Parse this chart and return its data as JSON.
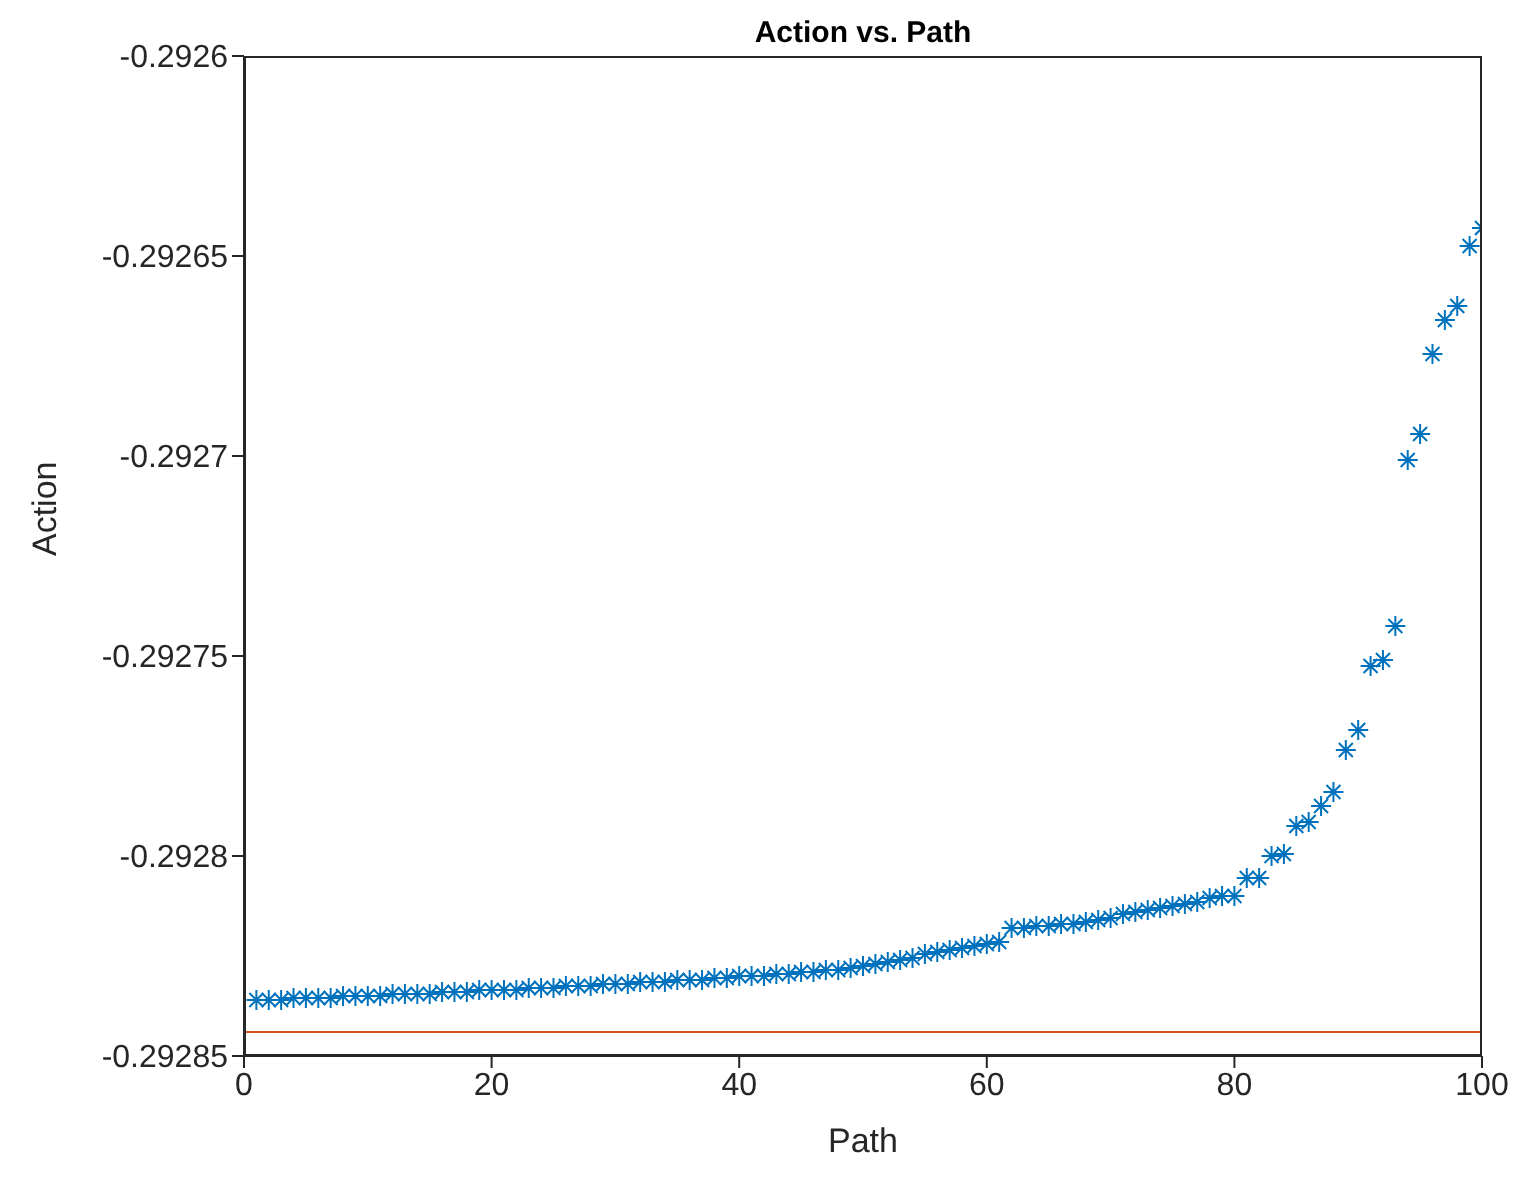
{
  "chart_data": {
    "type": "scatter",
    "title": "Action vs. Path",
    "xlabel": "Path",
    "ylabel": "Action",
    "x": [
      1,
      2,
      3,
      4,
      5,
      6,
      7,
      8,
      9,
      10,
      11,
      12,
      13,
      14,
      15,
      16,
      17,
      18,
      19,
      20,
      21,
      22,
      23,
      24,
      25,
      26,
      27,
      28,
      29,
      30,
      31,
      32,
      33,
      34,
      35,
      36,
      37,
      38,
      39,
      40,
      41,
      42,
      43,
      44,
      45,
      46,
      47,
      48,
      49,
      50,
      51,
      52,
      53,
      54,
      55,
      56,
      57,
      58,
      59,
      60,
      61,
      62,
      63,
      64,
      65,
      66,
      67,
      68,
      69,
      70,
      71,
      72,
      73,
      74,
      75,
      76,
      77,
      78,
      79,
      80,
      81,
      82,
      83,
      84,
      85,
      86,
      87,
      88,
      89,
      90,
      91,
      92,
      93,
      94,
      95,
      96,
      97,
      98,
      99,
      100
    ],
    "series": [
      {
        "color": "#0072bd",
        "values": [
          -0.292836,
          -0.292836,
          -0.292836,
          -0.2928355,
          -0.2928355,
          -0.2928355,
          -0.2928355,
          -0.292835,
          -0.292835,
          -0.292835,
          -0.292835,
          -0.2928345,
          -0.2928345,
          -0.2928345,
          -0.2928345,
          -0.292834,
          -0.292834,
          -0.292834,
          -0.2928335,
          -0.2928335,
          -0.2928335,
          -0.2928335,
          -0.292833,
          -0.292833,
          -0.292833,
          -0.2928325,
          -0.2928325,
          -0.2928325,
          -0.292832,
          -0.292832,
          -0.292832,
          -0.2928315,
          -0.2928315,
          -0.2928315,
          -0.292831,
          -0.292831,
          -0.292831,
          -0.2928305,
          -0.2928305,
          -0.29283,
          -0.29283,
          -0.29283,
          -0.2928295,
          -0.2928295,
          -0.292829,
          -0.292829,
          -0.2928285,
          -0.2928285,
          -0.292828,
          -0.2928275,
          -0.292827,
          -0.2928265,
          -0.292826,
          -0.2928255,
          -0.2928245,
          -0.292824,
          -0.2928235,
          -0.292823,
          -0.2928225,
          -0.292822,
          -0.2928215,
          -0.292818,
          -0.292818,
          -0.2928175,
          -0.2928175,
          -0.292817,
          -0.292817,
          -0.2928165,
          -0.292816,
          -0.2928155,
          -0.2928145,
          -0.292814,
          -0.2928135,
          -0.292813,
          -0.2928125,
          -0.292812,
          -0.2928115,
          -0.2928105,
          -0.29281,
          -0.29281,
          -0.2928055,
          -0.2928055,
          -0.2928,
          -0.2927995,
          -0.2927925,
          -0.2927915,
          -0.2927875,
          -0.292784,
          -0.2927735,
          -0.2927685,
          -0.2927525,
          -0.292751,
          -0.2927425,
          -0.292701,
          -0.2926945,
          -0.2926745,
          -0.292666,
          -0.2926625,
          -0.2926475,
          -0.292643
        ]
      }
    ],
    "xlim": [
      0,
      100
    ],
    "xticks": [
      0,
      20,
      40,
      60,
      80,
      100
    ],
    "ylim": [
      -0.29285,
      -0.2926
    ],
    "yticks": [
      -0.29285,
      -0.2928,
      -0.29275,
      -0.2927,
      -0.29265,
      -0.2926
    ],
    "ref_lines": [
      {
        "axis": "y",
        "value": -0.292844,
        "color": "#d95319"
      }
    ],
    "marker": "cross",
    "grid": false,
    "legend": false
  }
}
